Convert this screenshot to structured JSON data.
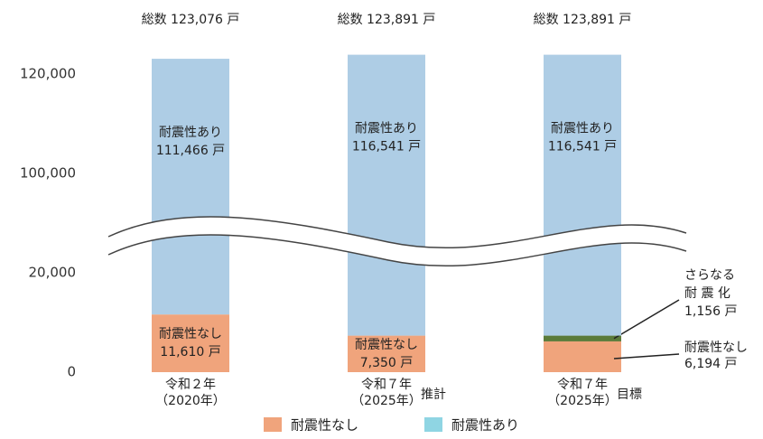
{
  "chart_data": {
    "type": "stacked_bar",
    "categories": [
      [
        "令和２年",
        "（2020年）"
      ],
      [
        "令和７年",
        "（2025年）"
      ],
      [
        "令和７年",
        "（2025年）"
      ]
    ],
    "category_notes": [
      null,
      "推計",
      "目標"
    ],
    "total_labels": [
      "総数 123,076 戸",
      "総数 123,891 戸",
      "総数 123,891 戸"
    ],
    "series": [
      {
        "name": "耐震性なし",
        "color": "#f0a47c",
        "legend_color": "#f0a47c",
        "values": [
          11610,
          7350,
          6194
        ],
        "value_labels": [
          "11,610 戸",
          "7,350 戸",
          "6,194 戸"
        ]
      },
      {
        "label_lines": [
          "さらなる",
          "耐 震 化"
        ],
        "color": "#5b7b3a",
        "values": [
          null,
          null,
          1156
        ],
        "value_labels": [
          null,
          null,
          "1,156 戸"
        ]
      },
      {
        "name": "耐震性あり",
        "color": "#aecde5",
        "legend_color": "#8fd5e3",
        "values": [
          111466,
          116541,
          116541
        ],
        "value_labels": [
          "111,466 戸",
          "116,541 戸",
          "116,541 戸"
        ]
      }
    ],
    "ylim": [
      0,
      125000
    ],
    "ybreak": [
      26000,
      94000
    ],
    "yticks": [
      {
        "value": 0,
        "label": "0"
      },
      {
        "value": 20000,
        "label": "20,000"
      },
      {
        "value": 100000,
        "label": "100,000"
      },
      {
        "value": 120000,
        "label": "120,000"
      }
    ]
  }
}
